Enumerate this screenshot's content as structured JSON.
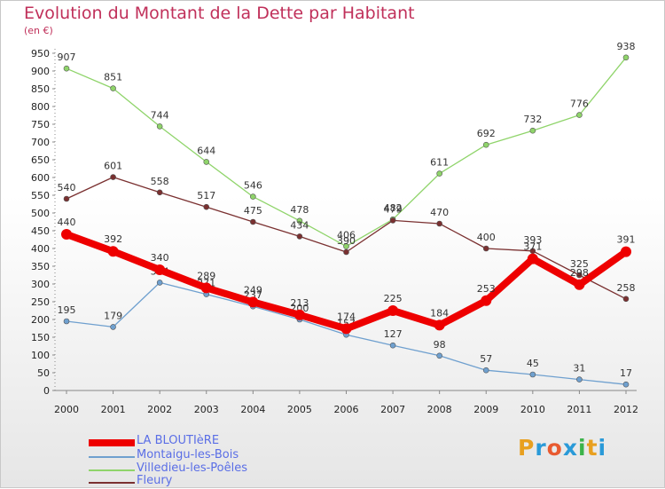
{
  "header": {
    "title": "Evolution du Montant de la Dette par Habitant",
    "subtitle": "(en €)"
  },
  "logo": {
    "text": "Proxiti",
    "colors": [
      "#e8a020",
      "#2a9ad8",
      "#e85a30",
      "#2a9ad8",
      "#3bb34a",
      "#e8a020",
      "#2a9ad8"
    ]
  },
  "chart_data": {
    "type": "line",
    "title": "Evolution du Montant de la Dette par Habitant",
    "ylabel": "(en €)",
    "x": [
      "2000",
      "2001",
      "2002",
      "2003",
      "2004",
      "2005",
      "2006",
      "2007",
      "2008",
      "2009",
      "2010",
      "2011",
      "2012"
    ],
    "ylim": [
      0,
      950
    ],
    "yticks": [
      0,
      50,
      100,
      150,
      200,
      250,
      300,
      350,
      400,
      450,
      500,
      550,
      600,
      650,
      700,
      750,
      800,
      850,
      900,
      950
    ],
    "grid": false,
    "legend": "bottom-left",
    "series": [
      {
        "name": "LA BLOUTIèRE",
        "color": "#ee0000",
        "values": [
          440,
          392,
          340,
          289,
          249,
          213,
          174,
          225,
          184,
          253,
          371,
          298,
          391
        ]
      },
      {
        "name": "Montaigu-les-Bois",
        "color": "#6fa0cf",
        "values": [
          195,
          179,
          304,
          271,
          237,
          200,
          157,
          127,
          98,
          57,
          45,
          31,
          17
        ]
      },
      {
        "name": "Villedieu-les-Poêles",
        "color": "#8fd46a",
        "values": [
          907,
          851,
          744,
          644,
          546,
          478,
          406,
          482,
          611,
          692,
          732,
          776,
          938
        ]
      },
      {
        "name": "Fleury",
        "color": "#7a3030",
        "values": [
          540,
          601,
          558,
          517,
          475,
          434,
          390,
          479,
          470,
          400,
          393,
          325,
          258
        ]
      }
    ]
  }
}
